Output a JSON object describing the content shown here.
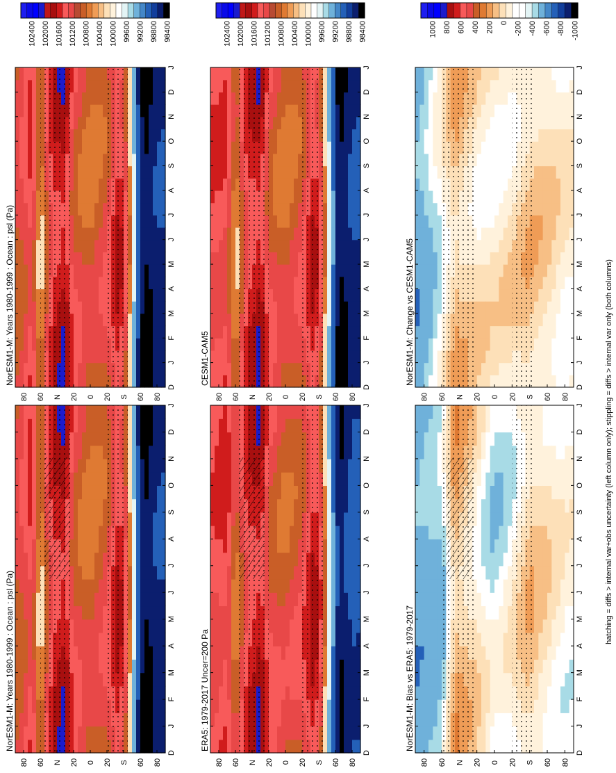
{
  "figure": {
    "footnote": "hatching = diffs > internal var+obs uncertainty (left column only); stippling = diffs > internal var only (both columns)"
  },
  "months": [
    "D",
    "J",
    "F",
    "M",
    "A",
    "M",
    "J",
    "J",
    "A",
    "S",
    "O",
    "N",
    "D",
    "J"
  ],
  "lat_ticks": [
    "80",
    "60",
    "N",
    "20",
    "0",
    "20",
    "S",
    "60",
    "80"
  ],
  "colors": {
    "abs_scale": [
      "#000000",
      "#0b1e6e",
      "#123e9c",
      "#2460b8",
      "#4487c8",
      "#6fb1da",
      "#a8dbe6",
      "#e3f4f5",
      "#ffffff",
      "#fff2dc",
      "#fde0b8",
      "#f7bf85",
      "#ef9c56",
      "#df7a33",
      "#c95e27",
      "#b84a32",
      "#e84848",
      "#f85a5a",
      "#d01c1c",
      "#a80f0f",
      "#c01818",
      "#1b1bcc",
      "#0000ff",
      "#0a0ae8",
      "#1e1ef0"
    ],
    "diff_scale": [
      "#000000",
      "#0b1e6e",
      "#123e9c",
      "#2460b8",
      "#4487c8",
      "#6fb1da",
      "#a8dbe6",
      "#e3f4f5",
      "#ffffff",
      "#ffffff",
      "#fff2dc",
      "#fde0b8",
      "#f7bf85",
      "#ef9c56",
      "#df7a33",
      "#c95e27",
      "#e84848",
      "#f85a5a",
      "#d01c1c",
      "#a80f0f",
      "#1b1bcc",
      "#0000ff",
      "#0a0ae8",
      "#1e1ef0"
    ]
  },
  "panels": [
    {
      "title": "NorESM1-M: Years 1980-1999 : Ocean : psl (Pa)",
      "cbar": "abs"
    },
    {
      "title": "NorESM1-M: Years 1980-1999 : Ocean : psl (Pa)",
      "cbar": "abs"
    },
    {
      "title": "ERA5: 1979-2017 Uncer=200 Pa",
      "cbar": "abs"
    },
    {
      "title": "CESM1-CAM5",
      "cbar": "abs"
    },
    {
      "title": "NorESM1-M: Bias vs ERA5: 1979-2017",
      "cbar": "diff"
    },
    {
      "title": "NorESM1-M: Change vs CESM1-CAM5",
      "cbar": "diff"
    }
  ],
  "chart_data": {
    "type": "heatmap",
    "variable": "psl",
    "units": "Pa",
    "x_axis": {
      "ticks": [
        "D",
        "J",
        "F",
        "M",
        "A",
        "M",
        "J",
        "J",
        "A",
        "S",
        "O",
        "N",
        "D",
        "J"
      ]
    },
    "y_axis": {
      "ticks": [
        "80",
        "60",
        "N",
        "20",
        "0",
        "20",
        "S",
        "60",
        "80"
      ],
      "range": [
        -90,
        90
      ]
    },
    "abs_colorbar_ticks": [
      "102400",
      "102000",
      "101600",
      "101200",
      "100800",
      "100400",
      "100000",
      "99600",
      "99200",
      "98800",
      "98400"
    ],
    "diff_colorbar_ticks": [
      "1000",
      "800",
      "600",
      "400",
      "200",
      "0",
      "-200",
      "-400",
      "-600",
      "-800",
      "-1000"
    ],
    "fields": [
      {
        "panel": "NorESM1-M: Years 1980-1999 : Ocean : psl (Pa)",
        "zonal_profile": [
          {
            "lat": 85,
            "value": 101200
          },
          {
            "lat": 70,
            "value": 101550
          },
          {
            "lat": 60,
            "value": 100800
          },
          {
            "lat": 45,
            "value": 101700
          },
          {
            "lat": 30,
            "value": 101850
          },
          {
            "lat": 20,
            "value": 101300
          },
          {
            "lat": 0,
            "value": 101050
          },
          {
            "lat": -20,
            "value": 101250
          },
          {
            "lat": -35,
            "value": 101750
          },
          {
            "lat": -45,
            "value": 101200
          },
          {
            "lat": -55,
            "value": 99600
          },
          {
            "lat": -65,
            "value": 98650
          },
          {
            "lat": -80,
            "value": 99100
          }
        ]
      },
      {
        "panel": "ERA5: 1979-2017 Uncer=200 Pa",
        "zonal_profile": [
          {
            "lat": 85,
            "value": 101450
          },
          {
            "lat": 70,
            "value": 101600
          },
          {
            "lat": 60,
            "value": 101000
          },
          {
            "lat": 45,
            "value": 101650
          },
          {
            "lat": 30,
            "value": 101850
          },
          {
            "lat": 20,
            "value": 101350
          },
          {
            "lat": 0,
            "value": 101150
          },
          {
            "lat": -20,
            "value": 101300
          },
          {
            "lat": -35,
            "value": 101800
          },
          {
            "lat": -45,
            "value": 101250
          },
          {
            "lat": -55,
            "value": 99800
          },
          {
            "lat": -65,
            "value": 98800
          },
          {
            "lat": -80,
            "value": 99300
          }
        ]
      },
      {
        "panel": "CESM1-CAM5",
        "zonal_profile": [
          {
            "lat": 85,
            "value": 101500
          },
          {
            "lat": 70,
            "value": 101500
          },
          {
            "lat": 60,
            "value": 100850
          },
          {
            "lat": 45,
            "value": 101650
          },
          {
            "lat": 30,
            "value": 101850
          },
          {
            "lat": 20,
            "value": 101300
          },
          {
            "lat": 0,
            "value": 101050
          },
          {
            "lat": -20,
            "value": 101250
          },
          {
            "lat": -35,
            "value": 101750
          },
          {
            "lat": -45,
            "value": 101200
          },
          {
            "lat": -55,
            "value": 99700
          },
          {
            "lat": -65,
            "value": 98700
          },
          {
            "lat": -80,
            "value": 99150
          }
        ]
      },
      {
        "panel": "NorESM1-M: Bias vs ERA5: 1979-2017",
        "zonal_profile": [
          {
            "lat": 85,
            "value": -300
          },
          {
            "lat": 60,
            "value": -200
          },
          {
            "lat": 45,
            "value": 300
          },
          {
            "lat": 20,
            "value": 100
          },
          {
            "lat": 0,
            "value": -100
          },
          {
            "lat": -20,
            "value": 0
          },
          {
            "lat": -40,
            "value": 200
          },
          {
            "lat": -60,
            "value": 100
          },
          {
            "lat": -80,
            "value": 0
          }
        ]
      },
      {
        "panel": "NorESM1-M: Change vs CESM1-CAM5",
        "zonal_profile": [
          {
            "lat": 85,
            "value": -300
          },
          {
            "lat": 60,
            "value": 0
          },
          {
            "lat": 45,
            "value": 250
          },
          {
            "lat": 20,
            "value": 100
          },
          {
            "lat": 0,
            "value": 50
          },
          {
            "lat": -20,
            "value": 100
          },
          {
            "lat": -40,
            "value": 200
          },
          {
            "lat": -60,
            "value": 150
          },
          {
            "lat": -80,
            "value": 50
          }
        ]
      }
    ]
  }
}
